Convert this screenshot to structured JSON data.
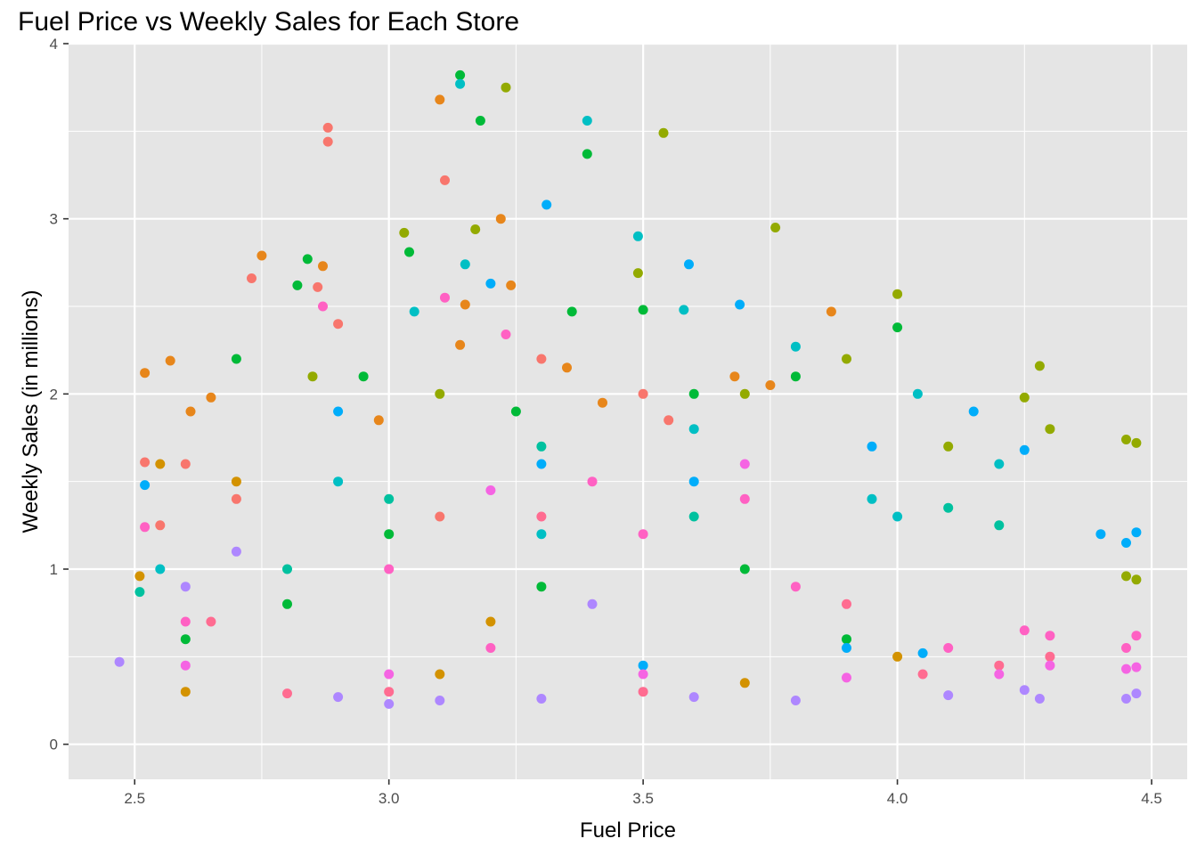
{
  "chart_data": {
    "type": "scatter",
    "title": "Fuel Price vs Weekly Sales for Each Store",
    "xlabel": "Fuel Price",
    "ylabel": "Weekly Sales (in millions)",
    "xlim": [
      2.37,
      4.57
    ],
    "ylim": [
      -0.2,
      4.0
    ],
    "x_ticks": [
      2.5,
      3.0,
      3.5,
      4.0,
      4.5
    ],
    "x_tick_labels": [
      "2.5",
      "3.0",
      "3.5",
      "4.0",
      "4.5"
    ],
    "y_ticks": [
      0,
      1,
      2,
      3,
      4
    ],
    "y_tick_labels": [
      "0",
      "1",
      "2",
      "3",
      "4"
    ],
    "grid": true,
    "legend": "none",
    "panel_background": "#e5e5e5",
    "grid_color": "#ffffff",
    "palette": [
      "#F8766D",
      "#E7861B",
      "#D39200",
      "#B79F00",
      "#93AA00",
      "#5EB300",
      "#00BA38",
      "#00BF74",
      "#00C19F",
      "#00BFC4",
      "#00B9E3",
      "#00ADFA",
      "#619CFF",
      "#AE87FF",
      "#DB72FB",
      "#F564E3",
      "#FF61C3",
      "#FF6C91"
    ],
    "series": [
      {
        "color": "#E7861B",
        "points": [
          [
            3.1,
            3.68
          ],
          [
            3.22,
            3.0
          ],
          [
            2.75,
            2.79
          ],
          [
            3.15,
            2.51
          ],
          [
            2.52,
            2.12
          ],
          [
            2.57,
            2.19
          ],
          [
            3.24,
            2.62
          ],
          [
            3.87,
            2.47
          ],
          [
            2.65,
            1.98
          ],
          [
            2.98,
            1.85
          ],
          [
            3.35,
            2.15
          ],
          [
            3.68,
            2.1
          ],
          [
            2.61,
            1.9
          ],
          [
            3.42,
            1.95
          ],
          [
            3.75,
            2.05
          ],
          [
            2.87,
            2.73
          ],
          [
            3.14,
            2.28
          ]
        ]
      },
      {
        "color": "#F8766D",
        "points": [
          [
            2.88,
            3.52
          ],
          [
            2.88,
            3.44
          ],
          [
            3.11,
            3.22
          ],
          [
            2.73,
            2.66
          ],
          [
            2.86,
            2.61
          ],
          [
            3.3,
            2.2
          ],
          [
            2.6,
            1.6
          ],
          [
            3.55,
            1.85
          ],
          [
            2.7,
            1.4
          ],
          [
            3.1,
            1.3
          ],
          [
            2.9,
            2.4
          ],
          [
            2.55,
            1.25
          ],
          [
            3.5,
            2.0
          ],
          [
            2.52,
            1.61
          ]
        ]
      },
      {
        "color": "#00BA38",
        "points": [
          [
            3.14,
            3.82
          ],
          [
            3.39,
            3.37
          ],
          [
            3.18,
            3.56
          ],
          [
            2.84,
            2.77
          ],
          [
            3.04,
            2.81
          ],
          [
            2.82,
            2.62
          ],
          [
            3.36,
            2.47
          ],
          [
            3.5,
            2.48
          ],
          [
            2.7,
            2.2
          ],
          [
            2.95,
            2.1
          ],
          [
            3.25,
            1.9
          ],
          [
            3.6,
            2.0
          ],
          [
            3.8,
            2.1
          ],
          [
            4.0,
            2.38
          ],
          [
            3.0,
            1.2
          ],
          [
            3.3,
            0.9
          ],
          [
            2.8,
            0.8
          ],
          [
            3.7,
            1.0
          ],
          [
            2.6,
            0.6
          ],
          [
            3.9,
            0.6
          ]
        ]
      },
      {
        "color": "#00BFC4",
        "points": [
          [
            3.14,
            3.77
          ],
          [
            3.39,
            3.56
          ],
          [
            3.49,
            2.9
          ],
          [
            3.15,
            2.74
          ],
          [
            3.58,
            2.48
          ],
          [
            3.05,
            2.47
          ],
          [
            3.8,
            2.27
          ],
          [
            4.04,
            2.0
          ],
          [
            4.2,
            1.6
          ],
          [
            3.6,
            1.8
          ],
          [
            2.9,
            1.5
          ],
          [
            3.3,
            1.2
          ],
          [
            4.0,
            1.3
          ],
          [
            2.55,
            1.0
          ],
          [
            3.95,
            1.4
          ]
        ]
      },
      {
        "color": "#93AA00",
        "points": [
          [
            3.23,
            3.75
          ],
          [
            3.54,
            3.49
          ],
          [
            3.76,
            2.95
          ],
          [
            3.17,
            2.94
          ],
          [
            3.03,
            2.92
          ],
          [
            3.49,
            2.69
          ],
          [
            4.0,
            2.57
          ],
          [
            4.28,
            2.16
          ],
          [
            4.25,
            1.98
          ],
          [
            4.3,
            1.8
          ],
          [
            3.9,
            2.2
          ],
          [
            3.7,
            2.0
          ],
          [
            3.1,
            2.0
          ],
          [
            2.85,
            2.1
          ],
          [
            4.47,
            1.72
          ],
          [
            4.45,
            1.74
          ],
          [
            4.45,
            0.96
          ],
          [
            4.47,
            0.94
          ],
          [
            4.1,
            1.7
          ]
        ]
      },
      {
        "color": "#00ADFA",
        "points": [
          [
            3.31,
            3.08
          ],
          [
            3.59,
            2.74
          ],
          [
            3.69,
            2.51
          ],
          [
            3.2,
            2.63
          ],
          [
            4.4,
            1.2
          ],
          [
            4.47,
            1.21
          ],
          [
            4.45,
            1.15
          ],
          [
            4.25,
            1.68
          ],
          [
            4.15,
            1.9
          ],
          [
            3.95,
            1.7
          ],
          [
            3.6,
            1.5
          ],
          [
            3.3,
            1.6
          ],
          [
            2.9,
            1.9
          ],
          [
            2.52,
            1.48
          ],
          [
            3.5,
            0.45
          ],
          [
            4.05,
            0.52
          ],
          [
            3.9,
            0.55
          ]
        ]
      },
      {
        "color": "#FF61C3",
        "points": [
          [
            2.87,
            2.5
          ],
          [
            3.11,
            2.55
          ],
          [
            3.23,
            2.34
          ],
          [
            2.52,
            1.24
          ],
          [
            3.4,
            1.5
          ],
          [
            3.7,
            1.4
          ],
          [
            3.0,
            1.0
          ],
          [
            4.47,
            0.62
          ],
          [
            4.45,
            0.55
          ],
          [
            4.3,
            0.62
          ],
          [
            4.25,
            0.65
          ],
          [
            3.8,
            0.9
          ],
          [
            2.6,
            0.7
          ],
          [
            3.2,
            0.55
          ],
          [
            4.1,
            0.55
          ],
          [
            3.5,
            1.2
          ]
        ]
      },
      {
        "color": "#AE87FF",
        "points": [
          [
            2.47,
            0.47
          ],
          [
            4.47,
            0.29
          ],
          [
            4.45,
            0.26
          ],
          [
            4.28,
            0.26
          ],
          [
            4.25,
            0.31
          ],
          [
            3.8,
            0.25
          ],
          [
            3.6,
            0.27
          ],
          [
            3.3,
            0.26
          ],
          [
            3.0,
            0.23
          ],
          [
            2.7,
            1.1
          ],
          [
            2.6,
            0.9
          ],
          [
            3.4,
            0.8
          ],
          [
            4.1,
            0.28
          ],
          [
            2.9,
            0.27
          ],
          [
            3.1,
            0.25
          ]
        ]
      },
      {
        "color": "#FF6C91",
        "points": [
          [
            2.8,
            0.29
          ],
          [
            3.0,
            0.3
          ],
          [
            3.5,
            0.3
          ],
          [
            4.05,
            0.4
          ],
          [
            2.65,
            0.7
          ],
          [
            3.3,
            1.3
          ],
          [
            3.9,
            0.8
          ],
          [
            4.3,
            0.5
          ],
          [
            4.2,
            0.45
          ]
        ]
      },
      {
        "color": "#F564E3",
        "points": [
          [
            4.47,
            0.44
          ],
          [
            4.45,
            0.43
          ],
          [
            4.3,
            0.45
          ],
          [
            4.2,
            0.4
          ],
          [
            3.9,
            0.38
          ],
          [
            3.5,
            0.4
          ],
          [
            3.0,
            0.4
          ],
          [
            2.6,
            0.45
          ],
          [
            3.7,
            1.6
          ],
          [
            3.2,
            1.45
          ]
        ]
      },
      {
        "color": "#00C19F",
        "points": [
          [
            2.51,
            0.87
          ],
          [
            3.0,
            1.4
          ],
          [
            3.6,
            1.3
          ],
          [
            4.1,
            1.35
          ],
          [
            4.2,
            1.25
          ],
          [
            3.3,
            1.7
          ],
          [
            2.8,
            1.0
          ]
        ]
      },
      {
        "color": "#D39200",
        "points": [
          [
            2.51,
            0.96
          ],
          [
            2.55,
            1.6
          ],
          [
            2.7,
            1.5
          ],
          [
            3.2,
            0.7
          ],
          [
            3.7,
            0.35
          ],
          [
            3.1,
            0.4
          ],
          [
            2.6,
            0.3
          ],
          [
            4.0,
            0.5
          ]
        ]
      }
    ]
  }
}
